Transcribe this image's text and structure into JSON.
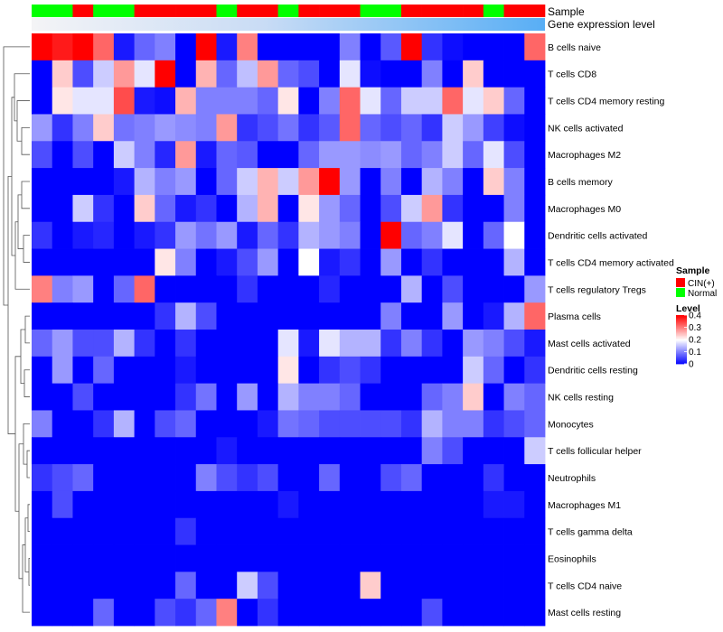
{
  "chart_data": {
    "type": "heatmap",
    "title": "",
    "color_scale": {
      "low": "#0000ff",
      "mid": "#ffffff",
      "high": "#ff0000",
      "min": 0,
      "mid_value": 0.2,
      "max": 0.4
    },
    "annotations": [
      {
        "name": "Sample",
        "values": [
          "Normal",
          "Normal",
          "CIN(+)",
          "Normal",
          "Normal",
          "CIN(+)",
          "CIN(+)",
          "CIN(+)",
          "CIN(+)",
          "Normal",
          "CIN(+)",
          "CIN(+)",
          "Normal",
          "CIN(+)",
          "CIN(+)",
          "CIN(+)",
          "Normal",
          "Normal",
          "CIN(+)",
          "CIN(+)",
          "CIN(+)",
          "CIN(+)",
          "Normal",
          "CIN(+)",
          "CIN(+)"
        ]
      },
      {
        "name": "Gene expression level"
      }
    ],
    "rows": [
      "B cells naive",
      "T cells CD8",
      "T cells CD4 memory resting",
      "NK cells activated",
      "Macrophages M2",
      "B cells memory",
      "Macrophages M0",
      "Dendritic cells activated",
      "T cells CD4 memory activated",
      "T cells regulatory  Tregs",
      "Plasma cells",
      "Mast cells activated",
      "Dendritic cells resting",
      "NK cells resting",
      "Monocytes",
      "T cells follicular helper",
      "Neutrophils",
      "Macrophages M1",
      "T cells gamma delta",
      "Eosinophils",
      "T cells CD4 naive",
      "Mast cells resting"
    ],
    "values": [
      [
        0.4,
        0.38,
        0.4,
        0.32,
        0.02,
        0.08,
        0.1,
        0.0,
        0.4,
        0.02,
        0.3,
        0.0,
        0.0,
        0.0,
        0.0,
        0.1,
        0.0,
        0.07,
        0.4,
        0.04,
        0.01,
        0.0,
        0.0,
        0.0,
        0.32
      ],
      [
        0.0,
        0.24,
        0.06,
        0.16,
        0.28,
        0.18,
        0.4,
        0.0,
        0.26,
        0.08,
        0.15,
        0.28,
        0.08,
        0.06,
        0.0,
        0.18,
        0.01,
        0.0,
        0.0,
        0.1,
        0.0,
        0.24,
        0.0,
        0.0,
        0.0
      ],
      [
        0.0,
        0.22,
        0.18,
        0.18,
        0.34,
        0.02,
        0.01,
        0.26,
        0.1,
        0.1,
        0.1,
        0.08,
        0.22,
        0.0,
        0.1,
        0.32,
        0.18,
        0.08,
        0.16,
        0.16,
        0.32,
        0.18,
        0.24,
        0.08,
        0.0
      ],
      [
        0.12,
        0.04,
        0.1,
        0.24,
        0.09,
        0.1,
        0.12,
        0.11,
        0.1,
        0.28,
        0.04,
        0.06,
        0.09,
        0.04,
        0.07,
        0.32,
        0.08,
        0.06,
        0.08,
        0.04,
        0.16,
        0.12,
        0.05,
        0.01,
        0.0
      ],
      [
        0.06,
        0.0,
        0.06,
        0.0,
        0.16,
        0.1,
        0.03,
        0.28,
        0.02,
        0.08,
        0.07,
        0.0,
        0.0,
        0.08,
        0.12,
        0.12,
        0.11,
        0.12,
        0.08,
        0.1,
        0.16,
        0.08,
        0.18,
        0.06,
        0.0
      ],
      [
        0.0,
        0.0,
        0.0,
        0.0,
        0.02,
        0.14,
        0.1,
        0.12,
        0.0,
        0.08,
        0.16,
        0.26,
        0.16,
        0.28,
        0.4,
        0.12,
        0.0,
        0.1,
        0.0,
        0.14,
        0.1,
        0.0,
        0.24,
        0.1,
        0.0
      ],
      [
        0.0,
        0.0,
        0.16,
        0.04,
        0.0,
        0.24,
        0.08,
        0.02,
        0.04,
        0.0,
        0.14,
        0.26,
        0.0,
        0.22,
        0.12,
        0.08,
        0.0,
        0.06,
        0.16,
        0.28,
        0.04,
        0.0,
        0.0,
        0.1,
        0.0
      ],
      [
        0.04,
        0.0,
        0.02,
        0.03,
        0.0,
        0.02,
        0.04,
        0.12,
        0.09,
        0.12,
        0.02,
        0.08,
        0.04,
        0.14,
        0.12,
        0.1,
        0.0,
        0.4,
        0.08,
        0.1,
        0.18,
        0.0,
        0.08,
        0.2,
        0.0
      ],
      [
        0.0,
        0.0,
        0.0,
        0.0,
        0.0,
        0.0,
        0.22,
        0.1,
        0.0,
        0.02,
        0.06,
        0.12,
        0.0,
        0.2,
        0.02,
        0.04,
        0.0,
        0.12,
        0.0,
        0.04,
        0.0,
        0.0,
        0.0,
        0.14,
        0.0
      ],
      [
        0.3,
        0.1,
        0.12,
        0.0,
        0.08,
        0.32,
        0.0,
        0.0,
        0.0,
        0.0,
        0.04,
        0.0,
        0.0,
        0.0,
        0.03,
        0.0,
        0.0,
        0.0,
        0.14,
        0.0,
        0.06,
        0.0,
        0.0,
        0.0,
        0.12
      ],
      [
        0.0,
        0.0,
        0.0,
        0.0,
        0.0,
        0.0,
        0.04,
        0.14,
        0.06,
        0.0,
        0.0,
        0.0,
        0.0,
        0.0,
        0.0,
        0.0,
        0.0,
        0.1,
        0.0,
        0.0,
        0.12,
        0.0,
        0.02,
        0.14,
        0.32
      ],
      [
        0.08,
        0.12,
        0.06,
        0.06,
        0.14,
        0.04,
        0.0,
        0.04,
        0.0,
        0.0,
        0.0,
        0.0,
        0.18,
        0.02,
        0.18,
        0.14,
        0.14,
        0.04,
        0.1,
        0.04,
        0.0,
        0.12,
        0.1,
        0.06,
        0.02
      ],
      [
        0.0,
        0.12,
        0.0,
        0.08,
        0.0,
        0.0,
        0.0,
        0.02,
        0.0,
        0.0,
        0.0,
        0.0,
        0.22,
        0.0,
        0.04,
        0.06,
        0.04,
        0.0,
        0.0,
        0.0,
        0.0,
        0.16,
        0.08,
        0.0,
        0.04
      ],
      [
        0.0,
        0.0,
        0.06,
        0.0,
        0.0,
        0.0,
        0.0,
        0.04,
        0.09,
        0.0,
        0.12,
        0.0,
        0.14,
        0.1,
        0.1,
        0.08,
        0.0,
        0.0,
        0.0,
        0.08,
        0.1,
        0.24,
        0.0,
        0.1,
        0.08
      ],
      [
        0.1,
        0.0,
        0.0,
        0.04,
        0.14,
        0.0,
        0.06,
        0.08,
        0.0,
        0.0,
        0.0,
        0.02,
        0.09,
        0.08,
        0.06,
        0.06,
        0.06,
        0.06,
        0.04,
        0.14,
        0.1,
        0.1,
        0.04,
        0.06,
        0.08
      ],
      [
        0.0,
        0.0,
        0.0,
        0.0,
        0.0,
        0.0,
        0.0,
        0.0,
        0.0,
        0.02,
        0.0,
        0.0,
        0.0,
        0.0,
        0.0,
        0.0,
        0.0,
        0.0,
        0.0,
        0.1,
        0.06,
        0.0,
        0.0,
        0.0,
        0.16
      ],
      [
        0.04,
        0.06,
        0.08,
        0.0,
        0.0,
        0.0,
        0.0,
        0.0,
        0.1,
        0.06,
        0.04,
        0.06,
        0.0,
        0.0,
        0.08,
        0.0,
        0.0,
        0.06,
        0.08,
        0.0,
        0.0,
        0.0,
        0.04,
        0.0,
        0.0
      ],
      [
        0.0,
        0.06,
        0.0,
        0.0,
        0.0,
        0.0,
        0.0,
        0.0,
        0.0,
        0.0,
        0.0,
        0.0,
        0.02,
        0.0,
        0.0,
        0.0,
        0.0,
        0.0,
        0.0,
        0.0,
        0.0,
        0.0,
        0.02,
        0.02,
        0.0
      ],
      [
        0.0,
        0.0,
        0.0,
        0.0,
        0.0,
        0.0,
        0.0,
        0.04,
        0.0,
        0.0,
        0.0,
        0.0,
        0.0,
        0.0,
        0.0,
        0.0,
        0.0,
        0.0,
        0.0,
        0.0,
        0.0,
        0.0,
        0.0,
        0.0,
        0.0
      ],
      [
        0.0,
        0.0,
        0.0,
        0.0,
        0.0,
        0.0,
        0.0,
        0.0,
        0.0,
        0.0,
        0.0,
        0.0,
        0.0,
        0.0,
        0.0,
        0.0,
        0.0,
        0.0,
        0.0,
        0.0,
        0.0,
        0.0,
        0.0,
        0.0,
        0.0
      ],
      [
        0.0,
        0.0,
        0.0,
        0.0,
        0.0,
        0.0,
        0.0,
        0.08,
        0.0,
        0.0,
        0.16,
        0.06,
        0.0,
        0.0,
        0.0,
        0.0,
        0.24,
        0.0,
        0.0,
        0.0,
        0.0,
        0.0,
        0.0,
        0.0,
        0.0
      ],
      [
        0.0,
        0.0,
        0.0,
        0.08,
        0.0,
        0.0,
        0.06,
        0.04,
        0.08,
        0.3,
        0.0,
        0.04,
        0.0,
        0.0,
        0.0,
        0.0,
        0.0,
        0.0,
        0.0,
        0.06,
        0.0,
        0.0,
        0.0,
        0.0,
        0.0
      ]
    ],
    "legend": {
      "sample_title": "Sample",
      "sample_items": [
        {
          "label": "CIN(+)",
          "color": "#ff0000"
        },
        {
          "label": "Normal",
          "color": "#00ff00"
        }
      ],
      "level_title": "Level",
      "level_ticks": [
        {
          "value": 0.4,
          "label": "0.4"
        },
        {
          "value": 0.3,
          "label": "0.3"
        },
        {
          "value": 0.2,
          "label": "0.2"
        },
        {
          "value": 0.1,
          "label": "0.1"
        },
        {
          "value": 0,
          "label": "0"
        }
      ]
    }
  }
}
